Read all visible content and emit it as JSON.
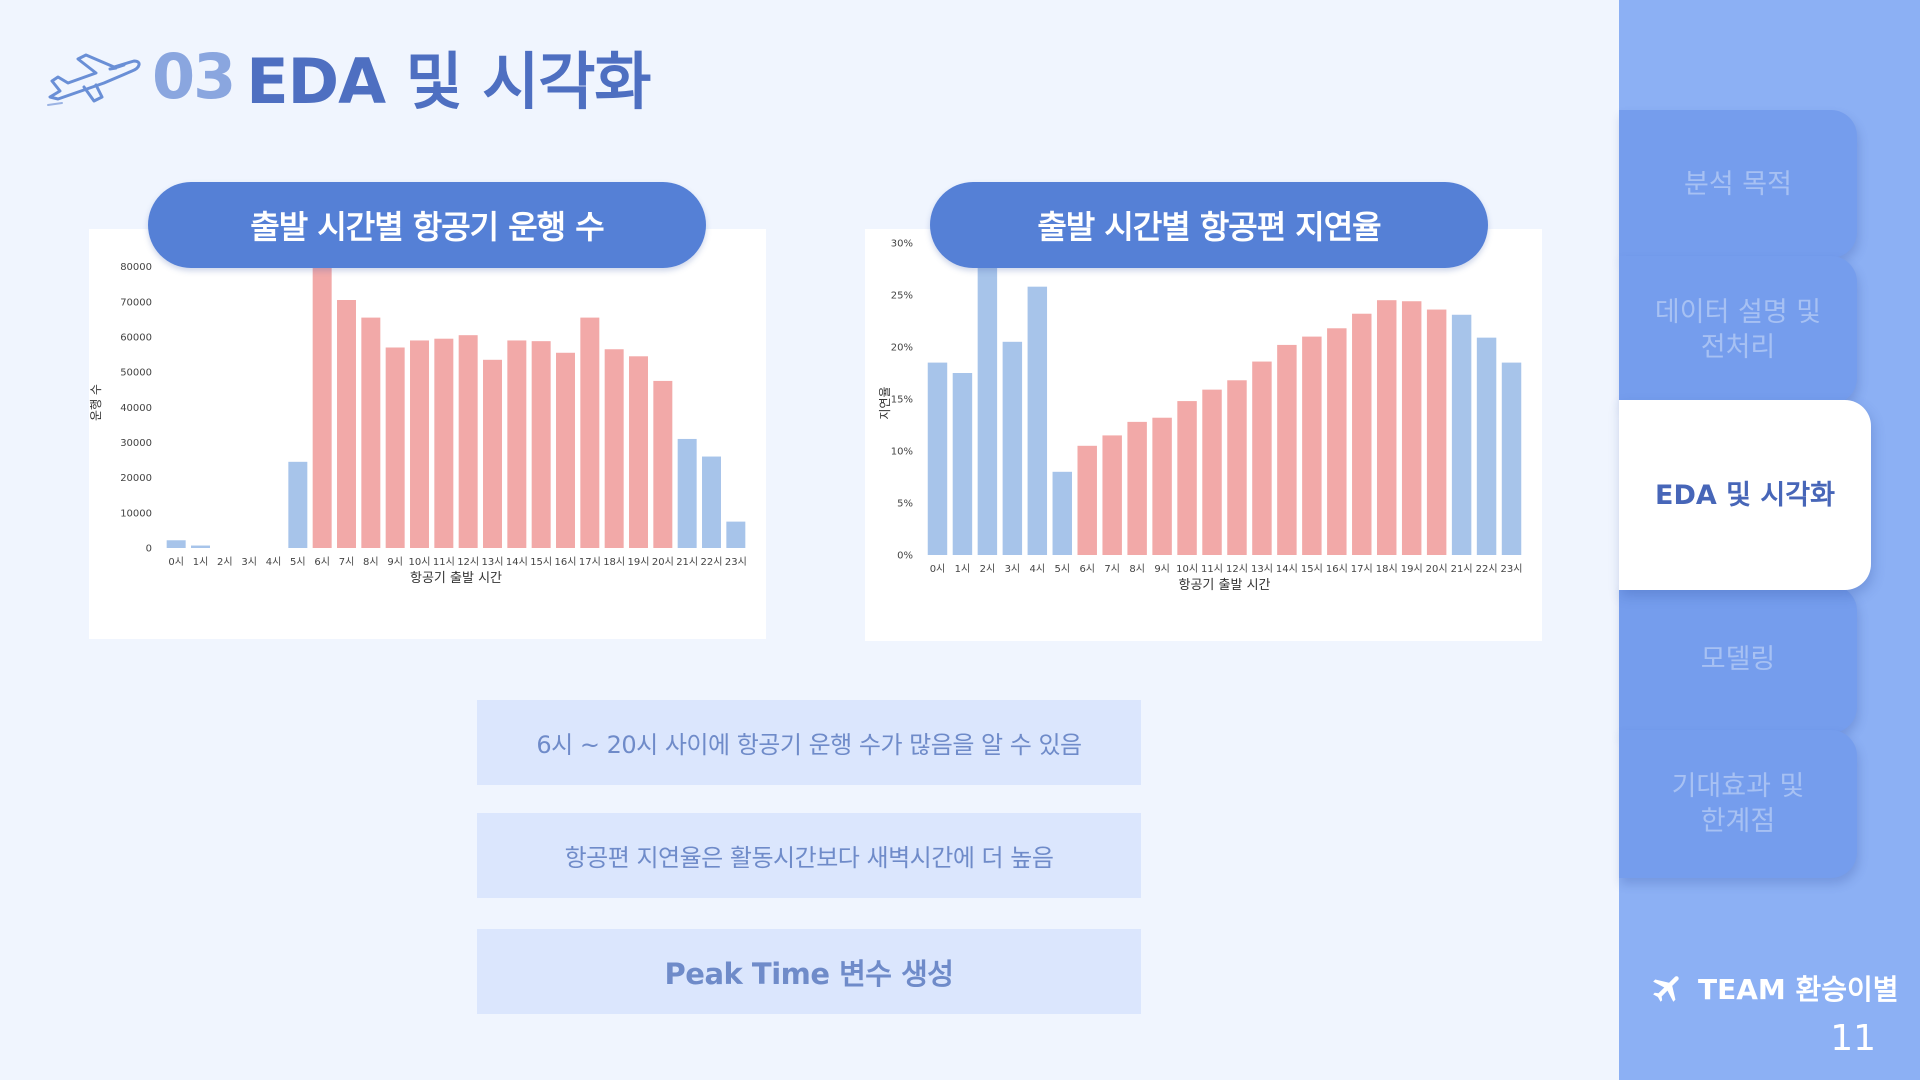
{
  "header": {
    "section_number": "03",
    "section_title": "EDA 및 시각화",
    "logo_icon": "airplane-icon"
  },
  "charts_titles": {
    "left": "출발 시간별 항공기 운행 수",
    "right": "출발 시간별 항공편 지연율"
  },
  "colors": {
    "bar_blue": "#a7c4ea",
    "bar_red": "#f2a9a8",
    "pill": "#5580d6",
    "sidebar": "#8cb0f4"
  },
  "chart_data": [
    {
      "type": "bar",
      "categories": [
        "0시",
        "1시",
        "2시",
        "3시",
        "4시",
        "5시",
        "6시",
        "7시",
        "8시",
        "9시",
        "10시",
        "11시",
        "12시",
        "13시",
        "14시",
        "15시",
        "16시",
        "17시",
        "18시",
        "19시",
        "20시",
        "21시",
        "22시",
        "23시"
      ],
      "values": [
        2200,
        700,
        0,
        0,
        0,
        24500,
        85000,
        70500,
        65500,
        57000,
        59000,
        59500,
        60500,
        53500,
        59000,
        58800,
        55500,
        65500,
        56500,
        54500,
        47500,
        31000,
        26000,
        7500
      ],
      "bar_colors": [
        "blue",
        "blue",
        "blue",
        "blue",
        "blue",
        "blue",
        "red",
        "red",
        "red",
        "red",
        "red",
        "red",
        "red",
        "red",
        "red",
        "red",
        "red",
        "red",
        "red",
        "red",
        "red",
        "blue",
        "blue",
        "blue"
      ],
      "xlabel": "항공기 출발 시간",
      "ylabel": "운행 수",
      "ylim": [
        0,
        85000
      ],
      "yticks": [
        0,
        10000,
        20000,
        30000,
        40000,
        50000,
        60000,
        70000,
        80000
      ],
      "ytick_labels": [
        "0",
        "10000",
        "20000",
        "30000",
        "40000",
        "50000",
        "60000",
        "70000",
        "80000"
      ],
      "grid": false
    },
    {
      "type": "bar",
      "categories": [
        "0시",
        "1시",
        "2시",
        "3시",
        "4시",
        "5시",
        "6시",
        "7시",
        "8시",
        "9시",
        "10시",
        "11시",
        "12시",
        "13시",
        "14시",
        "15시",
        "16시",
        "17시",
        "18시",
        "19시",
        "20시",
        "21시",
        "22시",
        "23시"
      ],
      "values": [
        18.5,
        17.5,
        28.8,
        20.5,
        25.8,
        8.0,
        10.5,
        11.5,
        12.8,
        13.2,
        14.8,
        15.9,
        16.8,
        18.6,
        20.2,
        21.0,
        21.8,
        23.2,
        24.5,
        24.4,
        23.6,
        23.1,
        20.9,
        18.5
      ],
      "bar_colors": [
        "blue",
        "blue",
        "blue",
        "blue",
        "blue",
        "blue",
        "red",
        "red",
        "red",
        "red",
        "red",
        "red",
        "red",
        "red",
        "red",
        "red",
        "red",
        "red",
        "red",
        "red",
        "red",
        "blue",
        "blue",
        "blue"
      ],
      "xlabel": "항공기 출발 시간",
      "ylabel": "지연율",
      "ylim": [
        0,
        30
      ],
      "yticks": [
        0,
        5,
        10,
        15,
        20,
        25,
        30
      ],
      "ytick_labels": [
        "0%",
        "5%",
        "10%",
        "15%",
        "20%",
        "25%",
        "30%"
      ],
      "grid": false
    }
  ],
  "bullets": [
    "6시 ~ 20시 사이에 항공기 운행 수가 많음을 알 수 있음",
    "항공편 지연율은 활동시간보다 새벽시간에 더 높음",
    "Peak Time 변수 생성"
  ],
  "sidebar": {
    "items": [
      {
        "label": "분석 목적"
      },
      {
        "label": "데이터 설명 및\n전처리"
      },
      {
        "label": "EDA 및 시각화"
      },
      {
        "label": "모델링"
      },
      {
        "label": "기대효과 및\n한계점"
      }
    ],
    "team": "TEAM 환승이별",
    "team_icon": "airplane-icon",
    "page_number": "11"
  }
}
